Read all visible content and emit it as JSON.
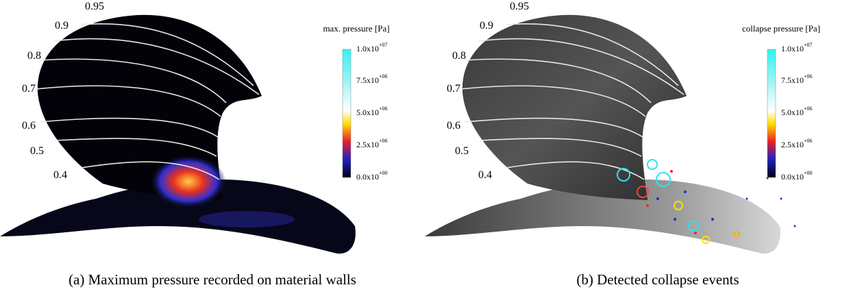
{
  "panels": [
    {
      "colorbar": {
        "title": "max. pressure [Pa]",
        "ticks": [
          {
            "base": "1.0x10",
            "exp": "+07"
          },
          {
            "base": "7.5x10",
            "exp": "+06"
          },
          {
            "base": "5.0x10",
            "exp": "+06"
          },
          {
            "base": "2.5x10",
            "exp": "+06"
          },
          {
            "base": "0.0x10",
            "exp": "+00"
          }
        ]
      },
      "radius_labels": [
        "0.95",
        "0.9",
        "0.8",
        "0.7",
        "0.6",
        "0.5",
        "0.4"
      ],
      "caption": "(a) Maximum pressure recorded on material walls"
    },
    {
      "colorbar": {
        "title": "collapse pressure [Pa]",
        "ticks": [
          {
            "base": "1.0x10",
            "exp": "+07"
          },
          {
            "base": "7.5x10",
            "exp": "+06"
          },
          {
            "base": "5.0x10",
            "exp": "+06"
          },
          {
            "base": "2.5x10",
            "exp": "+06"
          },
          {
            "base": "0.0x10",
            "exp": "+00"
          }
        ]
      },
      "radius_labels": [
        "0.95",
        "0.9",
        "0.8",
        "0.7",
        "0.6",
        "0.5",
        "0.4"
      ],
      "caption": "(b) Detected collapse events"
    }
  ]
}
